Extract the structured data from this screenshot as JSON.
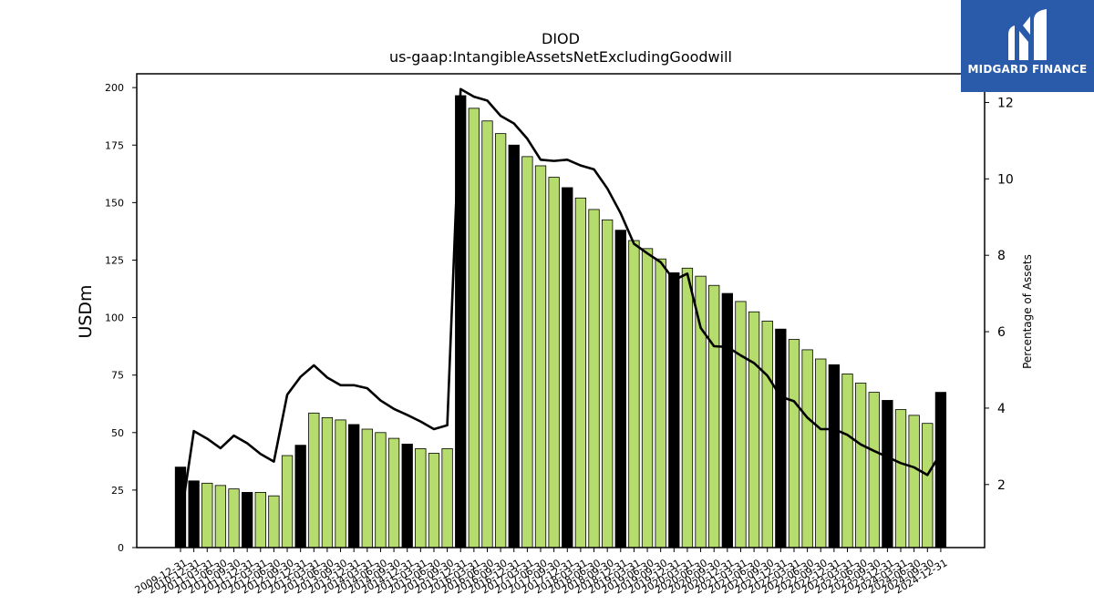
{
  "brand": {
    "name": "MIDGARD FINANCE",
    "bg_color": "#2a5aaa"
  },
  "chart_data": {
    "type": "bar",
    "title": "DIOD",
    "subtitle": "us-gaap:IntangibleAssetsNetExcludingGoodwill",
    "ylabel": "USDm",
    "y2label": "Percentage of Assets",
    "ylim": [
      0,
      206
    ],
    "y2lim": [
      0.35,
      12.75
    ],
    "yticks": [
      0,
      25,
      50,
      75,
      100,
      125,
      150,
      175,
      200
    ],
    "y2ticks": [
      2,
      4,
      6,
      8,
      10,
      12
    ],
    "bar_colors": {
      "year_end": "#000000",
      "quarter": "#b5dc6c"
    },
    "categories": [
      "2009-12-31",
      "2010-12-31",
      "2011-03-31",
      "2011-06-30",
      "2011-09-30",
      "2011-12-31",
      "2012-03-31",
      "2012-06-30",
      "2012-09-30",
      "2012-12-31",
      "2013-03-31",
      "2013-06-30",
      "2013-09-30",
      "2013-12-31",
      "2014-03-31",
      "2014-06-30",
      "2014-09-30",
      "2014-12-31",
      "2015-03-31",
      "2015-06-30",
      "2015-09-30",
      "2015-12-31",
      "2016-03-31",
      "2016-06-30",
      "2016-09-30",
      "2016-12-31",
      "2017-03-31",
      "2017-06-30",
      "2017-09-30",
      "2017-12-31",
      "2018-03-31",
      "2018-06-30",
      "2018-09-30",
      "2018-12-31",
      "2019-03-31",
      "2019-06-30",
      "2019-09-30",
      "2019-12-31",
      "2020-03-31",
      "2020-06-30",
      "2020-09-30",
      "2020-12-31",
      "2021-03-31",
      "2021-06-30",
      "2021-09-30",
      "2021-12-31",
      "2022-03-31",
      "2022-06-30",
      "2022-09-30",
      "2022-12-31",
      "2023-03-31",
      "2023-06-30",
      "2023-09-30",
      "2023-12-31",
      "2024-03-31",
      "2024-06-30",
      "2024-09-30",
      "2024-12-31"
    ],
    "series": [
      {
        "type": "bar",
        "values": [
          35,
          29,
          28,
          27,
          25.5,
          24,
          24,
          22.5,
          40,
          44.5,
          58.5,
          56.5,
          55.5,
          53.5,
          51.5,
          50,
          47.5,
          45,
          43,
          41,
          43,
          196.5,
          191,
          185.5,
          180,
          175,
          170,
          166,
          161,
          156.5,
          152,
          147,
          142.5,
          138,
          133.5,
          130,
          125.5,
          119.5,
          121.5,
          118,
          114,
          110.5,
          107,
          102.5,
          98.5,
          95,
          90.5,
          86,
          82,
          79.5,
          75.5,
          71.5,
          67.5,
          64,
          60,
          57.5,
          54,
          67.5
        ]
      },
      {
        "type": "line",
        "axis": "right",
        "color": "#000000",
        "values": [
          1.05,
          3.4,
          3.2,
          2.95,
          3.28,
          3.08,
          2.8,
          2.6,
          4.35,
          4.82,
          5.12,
          4.8,
          4.6,
          4.6,
          4.52,
          4.2,
          3.98,
          3.82,
          3.65,
          3.45,
          3.55,
          12.35,
          12.15,
          12.05,
          11.65,
          11.45,
          11.05,
          10.5,
          10.47,
          10.5,
          10.35,
          10.25,
          9.75,
          9.1,
          8.3,
          8.05,
          7.82,
          7.35,
          7.52,
          6.1,
          5.62,
          5.6,
          5.38,
          5.18,
          4.85,
          4.3,
          4.18,
          3.75,
          3.45,
          3.45,
          3.3,
          3.05,
          2.88,
          2.72,
          2.56,
          2.45,
          2.25,
          2.82
        ]
      }
    ]
  }
}
